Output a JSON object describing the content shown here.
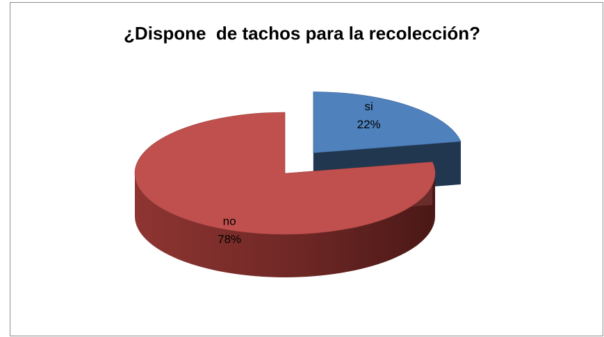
{
  "chart_data": {
    "type": "pie",
    "title": "¿Dispone  de tachos para la recolección?",
    "slices": [
      {
        "label": "si",
        "value": 22,
        "value_label": "22%",
        "color": "#4f81bd",
        "exploded": true
      },
      {
        "label": "no",
        "value": 78,
        "value_label": "78%",
        "color": "#c0504d",
        "exploded": false
      }
    ],
    "style": "3d-exploded-pie",
    "legend": "none"
  }
}
